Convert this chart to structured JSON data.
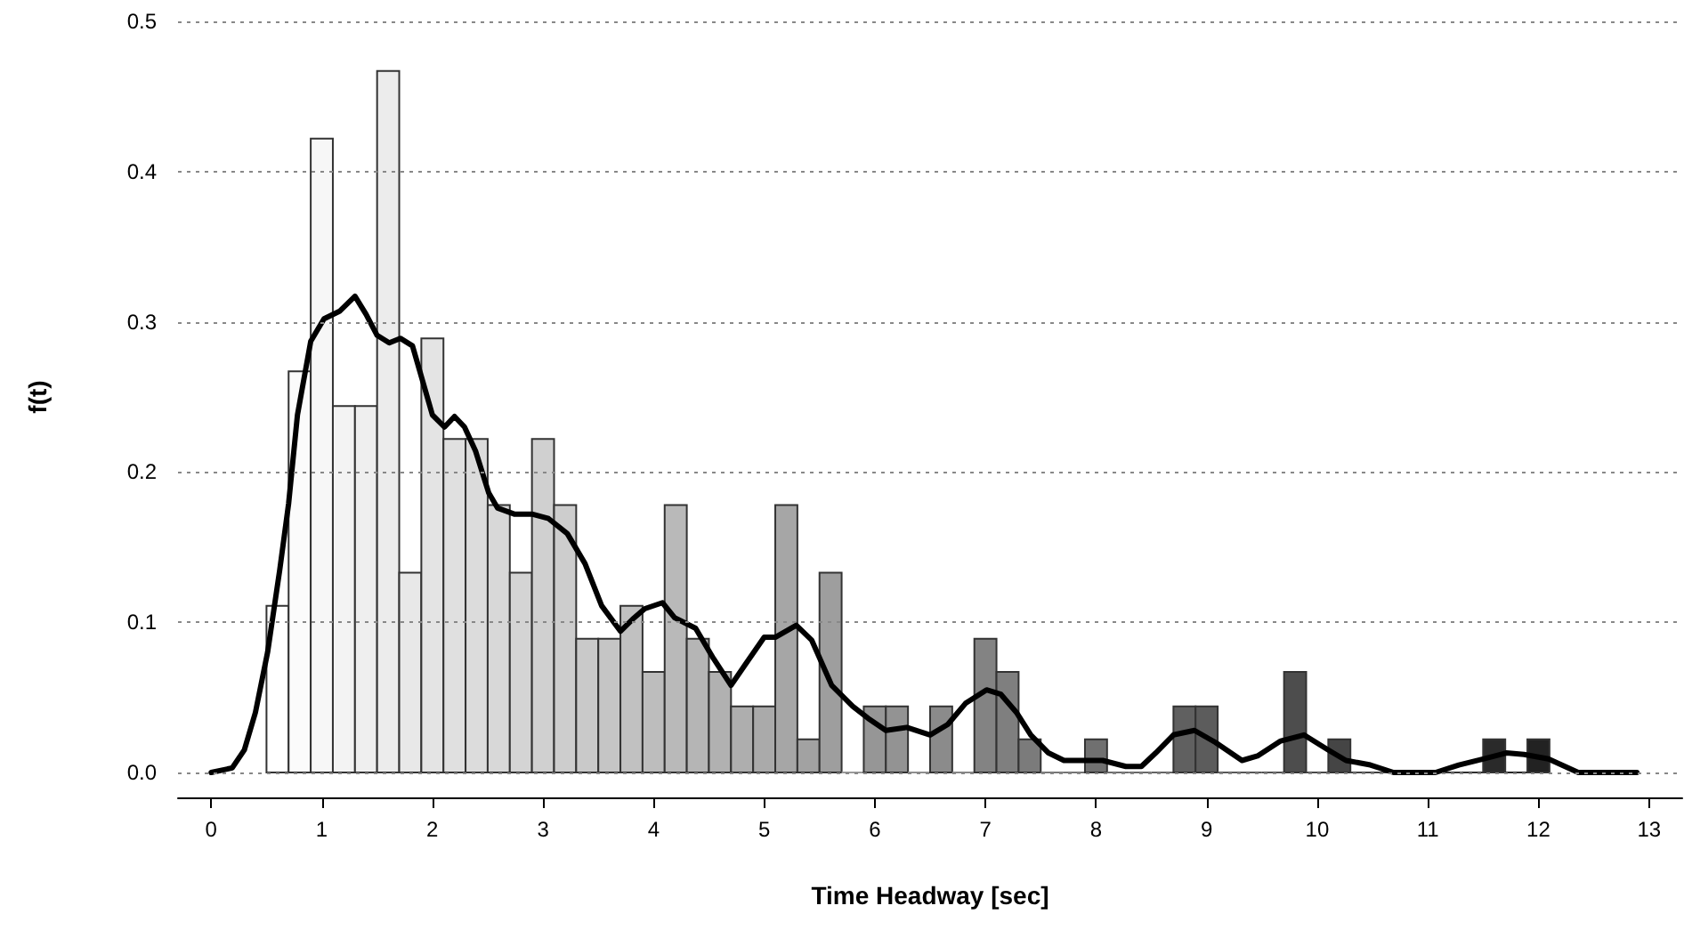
{
  "chart_data": {
    "type": "histogram",
    "xlabel": "Time Headway [sec]",
    "ylabel": "f(t)",
    "bins": [
      0.5,
      0.7,
      0.9,
      1.1,
      1.3,
      1.5,
      1.7,
      1.9,
      2.1,
      2.3,
      2.5,
      2.7,
      2.9,
      3.1,
      3.3,
      3.5,
      3.7,
      3.9,
      4.1,
      4.3,
      4.5,
      4.7,
      4.9,
      5.1,
      5.3,
      5.5,
      5.7,
      5.9,
      6.1,
      6.3,
      6.5,
      6.7,
      6.9,
      7.1,
      7.3,
      7.5,
      7.7,
      7.9,
      8.1,
      8.3,
      8.5,
      8.7,
      8.9,
      9.1,
      9.3,
      9.5,
      9.7,
      9.9,
      10.1,
      10.3,
      10.5,
      10.7,
      10.9,
      11.1,
      11.3,
      11.5,
      11.7,
      11.9,
      12.1
    ],
    "values": [
      0.111,
      0.267,
      0.422,
      0.244,
      0.244,
      0.467,
      0.133,
      0.289,
      0.222,
      0.222,
      0.178,
      0.133,
      0.222,
      0.178,
      0.089,
      0.089,
      0.111,
      0.067,
      0.178,
      0.089,
      0.067,
      0.044,
      0.044,
      0.178,
      0.022,
      0.133,
      0,
      0.044,
      0.044,
      0,
      0.044,
      0,
      0.089,
      0.067,
      0.022,
      0,
      0,
      0.022,
      0,
      0,
      0,
      0.044,
      0.044,
      0,
      0,
      0,
      0.067,
      0,
      0.022,
      0,
      0,
      0,
      0,
      0,
      0,
      0.022,
      0,
      0.022
    ],
    "colors": [
      "#ffffff",
      "#fbfbfb",
      "#f7f7f7",
      "#f3f3f3",
      "#efefef",
      "#ececec",
      "#e8e8e8",
      "#e4e4e4",
      "#e0e0e0",
      "#dcdcdc",
      "#d8d8d8",
      "#d4d4d4",
      "#d0d0d0",
      "#cdcdcd",
      "#c9c9c9",
      "#c5c5c5",
      "#c1c1c1",
      "#bdbdbd",
      "#b9b9b9",
      "#b5b5b5",
      "#b1b1b1",
      "#aeaeae",
      "#aaaaaa",
      "#a6a6a6",
      "#a2a2a2",
      "#9e9e9e",
      "#9a9a9a",
      "#969696",
      "#939393",
      "#8f8f8f",
      "#8b8b8b",
      "#878787",
      "#838383",
      "#7f7f7f",
      "#7b7b7b",
      "#777777",
      "#747474",
      "#707070",
      "#6c6c6c",
      "#686868",
      "#646464",
      "#606060",
      "#5c5c5c",
      "#585858",
      "#555555",
      "#515151",
      "#4d4d4d",
      "#494949",
      "#454545",
      "#414141",
      "#3d3d3d",
      "#393939",
      "#363636",
      "#323232",
      "#2e2e2e",
      "#2a2a2a",
      "#262626",
      "#222222"
    ],
    "series": [
      {
        "type": "line",
        "color": "#000000",
        "x": [
          0,
          0.19,
          0.3,
          0.4,
          0.51,
          0.62,
          0.7,
          0.78,
          0.9,
          1.02,
          1.16,
          1.3,
          1.4,
          1.5,
          1.61,
          1.71,
          1.82,
          1.91,
          2.0,
          2.11,
          2.2,
          2.29,
          2.39,
          2.51,
          2.59,
          2.74,
          2.9,
          3.05,
          3.22,
          3.38,
          3.53,
          3.7,
          3.81,
          3.92,
          4.08,
          4.19,
          4.38,
          4.54,
          4.7,
          4.83,
          5.0,
          5.1,
          5.29,
          5.43,
          5.61,
          5.8,
          5.94,
          6.1,
          6.29,
          6.5,
          6.66,
          6.82,
          7.01,
          7.14,
          7.28,
          7.41,
          7.57,
          7.71,
          8.06,
          8.27,
          8.41,
          8.54,
          8.7,
          8.89,
          9.08,
          9.32,
          9.46,
          9.67,
          9.88,
          10.1,
          10.26,
          10.48,
          10.69,
          11.07,
          11.28,
          11.5,
          11.71,
          11.87,
          12.09,
          12.36,
          12.89
        ],
        "values": [
          0,
          0.003,
          0.015,
          0.04,
          0.08,
          0.135,
          0.179,
          0.238,
          0.287,
          0.302,
          0.307,
          0.317,
          0.305,
          0.291,
          0.286,
          0.289,
          0.284,
          0.261,
          0.238,
          0.23,
          0.237,
          0.23,
          0.214,
          0.186,
          0.176,
          0.172,
          0.172,
          0.169,
          0.159,
          0.139,
          0.111,
          0.094,
          0.102,
          0.109,
          0.113,
          0.103,
          0.096,
          0.076,
          0.058,
          0.072,
          0.09,
          0.09,
          0.098,
          0.088,
          0.058,
          0.044,
          0.036,
          0.028,
          0.03,
          0.025,
          0.032,
          0.046,
          0.055,
          0.052,
          0.04,
          0.025,
          0.013,
          0.008,
          0.008,
          0.004,
          0.004,
          0.013,
          0.025,
          0.028,
          0.02,
          0.008,
          0.011,
          0.021,
          0.025,
          0.015,
          0.008,
          0.005,
          0,
          0,
          0.005,
          0.009,
          0.013,
          0.012,
          0.009,
          0,
          0
        ]
      }
    ],
    "xlim": [
      -0.3,
      13.3
    ],
    "xticks": [
      0,
      1,
      2,
      3,
      4,
      5,
      6,
      7,
      8,
      9,
      10,
      11,
      12,
      13
    ],
    "ylim": [
      0,
      0.5
    ],
    "yticks": [
      {
        "value": 0,
        "label": "0.0"
      },
      {
        "value": 0.1,
        "label": "0.1"
      },
      {
        "value": 0.2,
        "label": "0.2"
      },
      {
        "value": 0.3,
        "label": "0.3"
      },
      {
        "value": 0.4,
        "label": "0.4"
      },
      {
        "value": 0.5,
        "label": "0.5"
      }
    ],
    "grid": "y",
    "marker": "none",
    "line_style": "solid"
  }
}
